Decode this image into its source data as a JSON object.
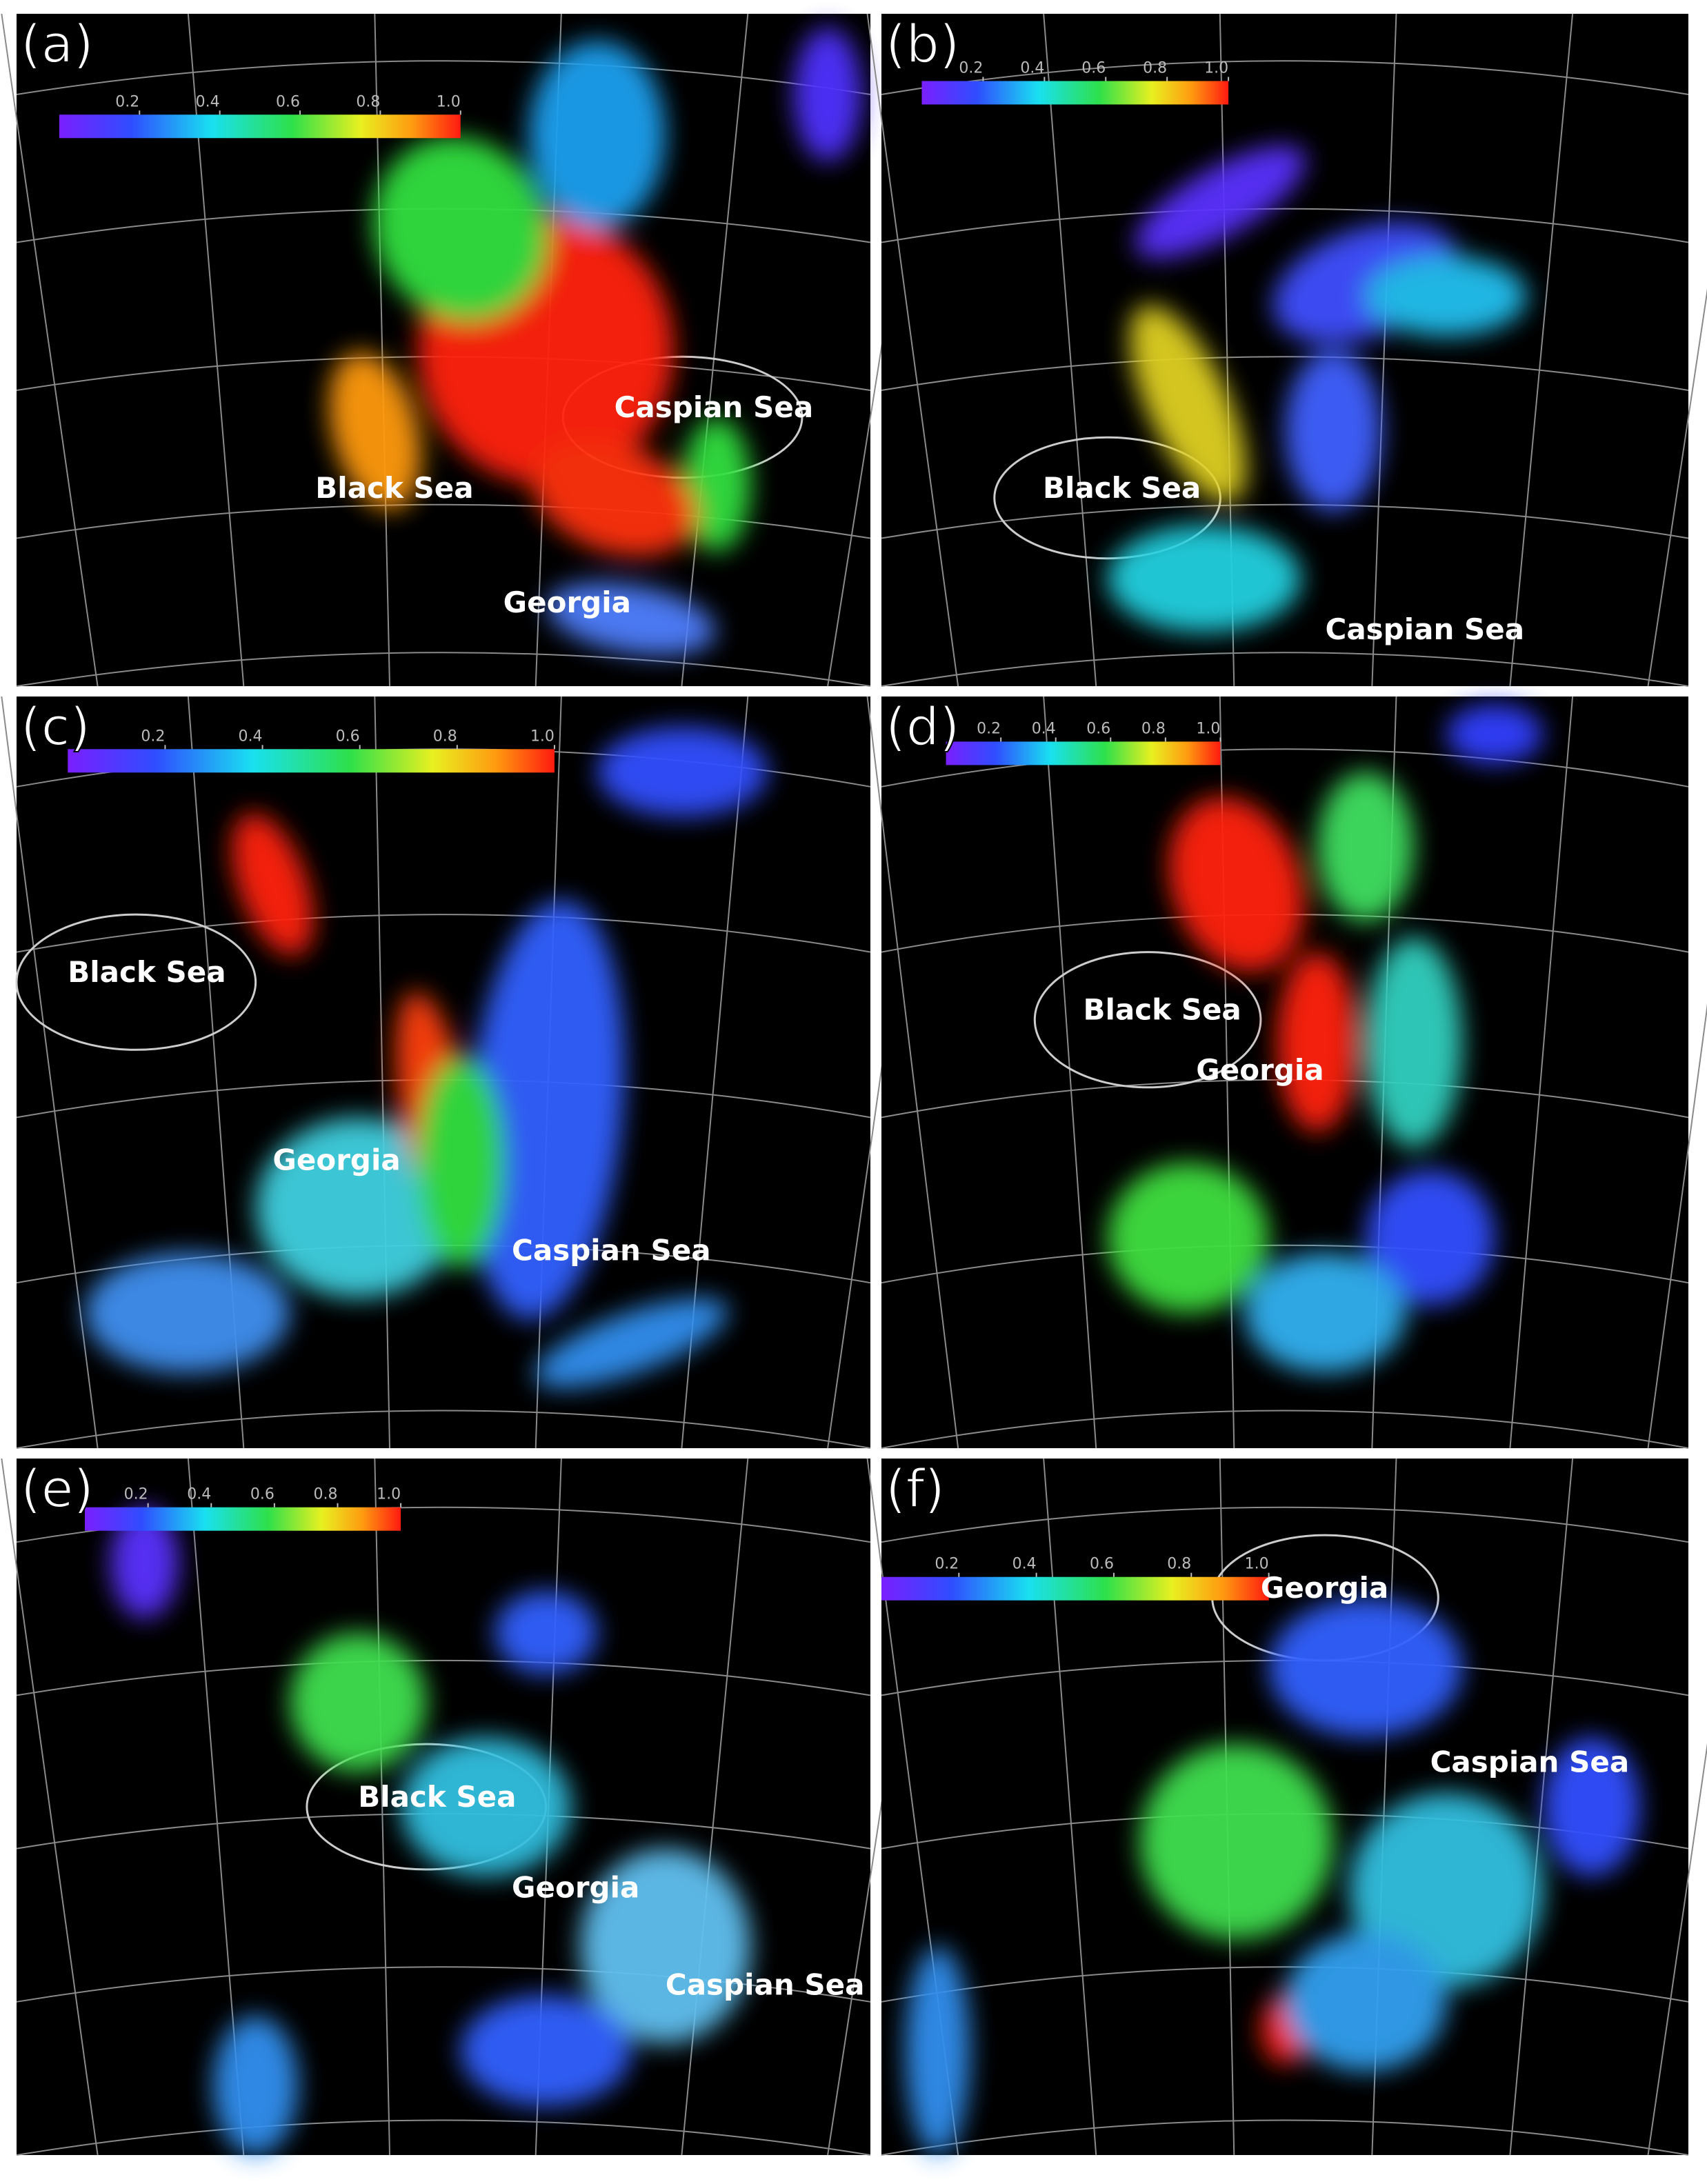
{
  "panels": [
    {
      "label": "(a)",
      "colorbar": {
        "range": [
          0,
          1
        ],
        "ticks": [
          0.2,
          0.4,
          0.6,
          0.8,
          {
            "value": 1,
            "label": "1.0"
          }
        ]
      },
      "places": [
        "Caspian Sea",
        "Black Sea",
        "Georgia"
      ]
    },
    {
      "label": "(b)",
      "colorbar": {
        "range": [
          0,
          1
        ],
        "ticks": [
          0.2,
          0.4,
          0.6,
          0.8,
          {
            "value": 1,
            "label": "1.0"
          }
        ]
      },
      "places": [
        "Black Sea",
        "Caspian Sea"
      ]
    },
    {
      "label": "(c)",
      "colorbar": {
        "range": [
          0,
          1
        ],
        "ticks": [
          0.2,
          0.4,
          0.6,
          0.8,
          {
            "value": 1,
            "label": "1.0"
          }
        ]
      },
      "places": [
        "Black Sea",
        "Georgia",
        "Caspian Sea"
      ]
    },
    {
      "label": "(d)",
      "colorbar": {
        "range": [
          0,
          1
        ],
        "ticks": [
          0.2,
          0.4,
          0.6,
          0.8,
          {
            "value": 1,
            "label": "1.0"
          }
        ]
      },
      "places": [
        "Black Sea",
        "Georgia"
      ]
    },
    {
      "label": "(e)",
      "colorbar": {
        "range": [
          0,
          1
        ],
        "ticks": [
          0.2,
          0.4,
          0.6,
          0.8,
          {
            "value": 1,
            "label": "1.0"
          }
        ]
      },
      "places": [
        "Black Sea",
        "Georgia",
        "Caspian Sea"
      ]
    },
    {
      "label": "(f)",
      "colorbar": {
        "range": [
          0,
          1
        ],
        "ticks": [
          0.2,
          0.4,
          0.6,
          0.8,
          {
            "value": 1,
            "label": "1.0"
          }
        ]
      },
      "places": [
        "Georgia",
        "Caspian Sea"
      ]
    }
  ]
}
